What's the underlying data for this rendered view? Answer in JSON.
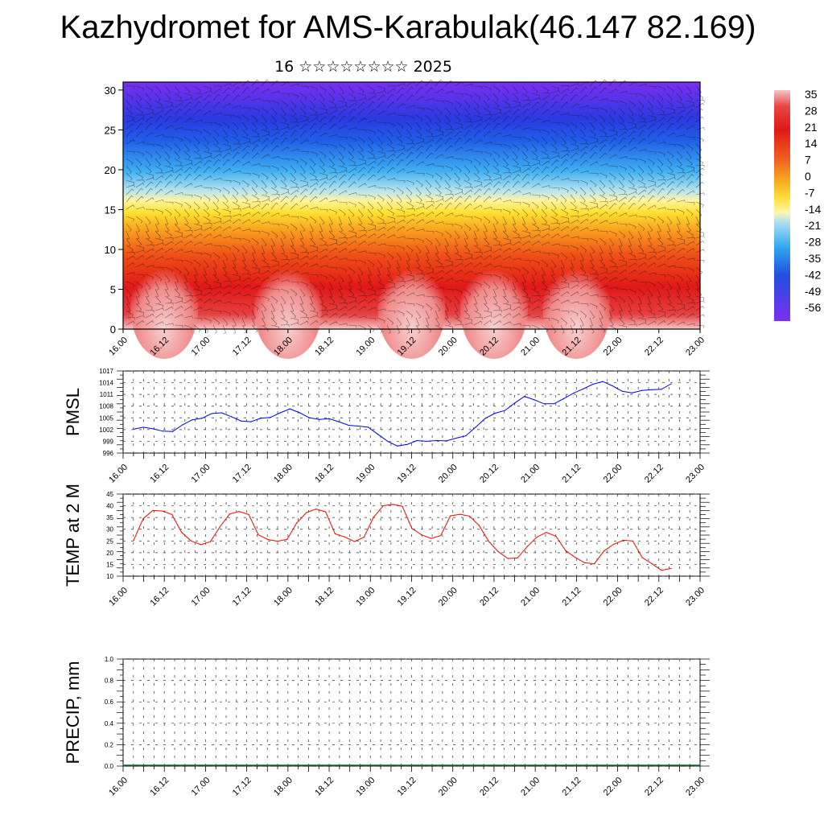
{
  "title": "Kazhydromet for AMS-Karabulak(46.147 82.169)",
  "subtitle": "16 ☆☆☆☆☆☆☆☆ 2025",
  "colorbar": {
    "labels": [
      "35",
      "28",
      "21",
      "14",
      "7",
      "0",
      "-7",
      "-14",
      "-21",
      "-28",
      "-35",
      "-42",
      "-49",
      "-56"
    ],
    "colors": [
      "#f5c5c5",
      "#e02020",
      "#f07020",
      "#fdd020",
      "#fff8a0",
      "#aee0f0",
      "#30a8f0",
      "#2050e0",
      "#7a2ff0"
    ]
  },
  "chart_data": [
    {
      "type": "heatmap",
      "name": "temperature-wind-cross-section",
      "y_ticks": [
        0,
        5,
        10,
        15,
        20,
        25,
        30
      ],
      "ylim": [
        0,
        31
      ],
      "x_ticks": [
        "16.00",
        "16.12",
        "17.00",
        "17.12",
        "18.00",
        "18.12",
        "19.00",
        "19.12",
        "20.00",
        "20.12",
        "21.00",
        "21.12",
        "22.00",
        "22.12",
        "23.00"
      ],
      "color_levels": [
        35,
        28,
        21,
        14,
        7,
        0,
        -7,
        -14,
        -21,
        -28,
        -35,
        -42,
        -49,
        -56
      ]
    },
    {
      "type": "line",
      "ylabel": "PMSL",
      "ylim": [
        996,
        1017
      ],
      "y_ticks": [
        996,
        999,
        1002,
        1005,
        1008,
        1011,
        1014,
        1017
      ],
      "x_ticks": [
        "16.00",
        "16.12",
        "17.00",
        "17.12",
        "18.00",
        "18.12",
        "19.00",
        "19.12",
        "20.00",
        "20.12",
        "21.00",
        "21.12",
        "22.00",
        "22.12",
        "23.00"
      ],
      "series": [
        {
          "color": "#0000ff",
          "values": [
            1002.1,
            1002.6,
            1002.2,
            1001.6,
            1001.5,
            1003.2,
            1004.5,
            1004.9,
            1006.1,
            1006.3,
            1005.3,
            1004.2,
            1004.0,
            1004.9,
            1005.1,
            1006.3,
            1007.3,
            1006.3,
            1005.0,
            1004.6,
            1004.8,
            1004.0,
            1003.1,
            1002.9,
            1002.6,
            1000.8,
            999.0,
            997.8,
            998.2,
            999.2,
            999.0,
            999.2,
            999.1,
            999.8,
            1000.4,
            1002.6,
            1004.9,
            1006.2,
            1006.9,
            1008.8,
            1010.5,
            1009.6,
            1008.6,
            1008.6,
            1009.9,
            1011.3,
            1012.4,
            1013.6,
            1014.3,
            1013.2,
            1011.8,
            1011.4,
            1012.0,
            1012.2,
            1012.3,
            1013.7
          ]
        }
      ]
    },
    {
      "type": "line",
      "ylabel": "TEMP at 2 M",
      "ylim": [
        10,
        45
      ],
      "y_ticks": [
        10,
        15,
        20,
        25,
        30,
        35,
        40,
        45
      ],
      "x_ticks": [
        "16.00",
        "16.12",
        "17.00",
        "17.12",
        "18.00",
        "18.12",
        "19.00",
        "19.12",
        "20.00",
        "20.12",
        "21.00",
        "21.12",
        "22.00",
        "22.12",
        "23.00"
      ],
      "series": [
        {
          "color": "#ff0000",
          "values": [
            25.2,
            34.5,
            38.0,
            37.8,
            36.3,
            28.7,
            25.0,
            23.4,
            24.7,
            31.1,
            36.5,
            37.6,
            36.3,
            27.6,
            25.6,
            24.9,
            25.7,
            32.7,
            37.1,
            38.6,
            37.4,
            28.0,
            26.7,
            24.8,
            26.6,
            35.1,
            40.0,
            40.6,
            39.8,
            30.3,
            27.6,
            26.1,
            27.3,
            35.7,
            36.4,
            35.6,
            31.6,
            24.8,
            20.4,
            17.5,
            17.8,
            22.6,
            26.6,
            28.7,
            27.0,
            20.9,
            18.0,
            15.7,
            15.3,
            20.7,
            23.6,
            25.3,
            25.0,
            17.9,
            15.3,
            12.5,
            13.3
          ]
        }
      ]
    },
    {
      "type": "bar",
      "ylabel": "PRECIP, mm",
      "ylim": [
        0.0,
        1.0
      ],
      "y_ticks": [
        "0.0",
        "0.2",
        "0.4",
        "0.6",
        "0.8",
        "1.0"
      ],
      "x_ticks": [
        "16.00",
        "16.12",
        "17.00",
        "17.12",
        "18.00",
        "18.12",
        "19.00",
        "19.12",
        "20.00",
        "20.12",
        "21.00",
        "21.12",
        "22.00",
        "22.12",
        "23.00"
      ],
      "values": [
        0,
        0,
        0,
        0,
        0,
        0,
        0,
        0,
        0,
        0,
        0,
        0,
        0,
        0,
        0,
        0,
        0,
        0,
        0,
        0,
        0,
        0,
        0,
        0,
        0,
        0,
        0,
        0,
        0,
        0,
        0,
        0,
        0,
        0,
        0,
        0,
        0,
        0,
        0,
        0,
        0,
        0,
        0,
        0,
        0,
        0,
        0,
        0,
        0,
        0,
        0,
        0,
        0,
        0,
        0,
        0
      ]
    }
  ]
}
